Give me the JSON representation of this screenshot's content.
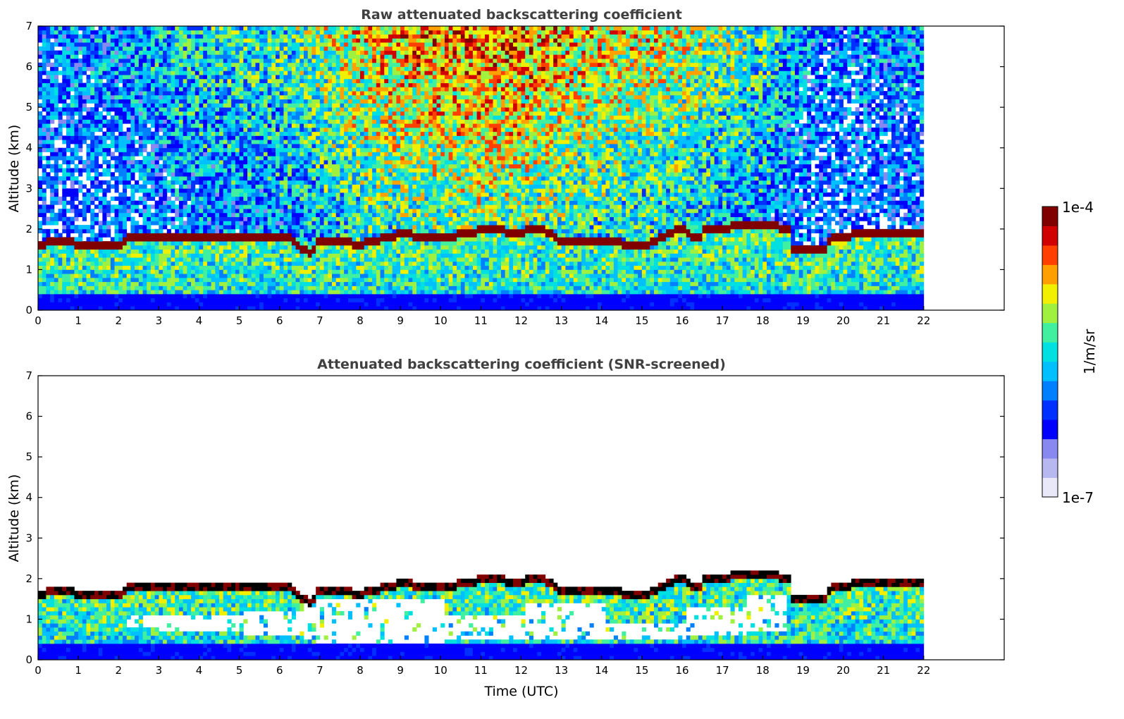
{
  "chart_data": [
    {
      "type": "heatmap",
      "title": "Raw attenuated backscattering coefficient",
      "xlabel": "",
      "ylabel": "Altitude (km)",
      "xlim": [
        0,
        24
      ],
      "ylim": [
        0,
        7
      ],
      "data_xmax": 22,
      "x_ticks": [
        "0",
        "1",
        "2",
        "3",
        "4",
        "5",
        "6",
        "7",
        "8",
        "9",
        "10",
        "11",
        "12",
        "13",
        "14",
        "15",
        "16",
        "17",
        "18",
        "19",
        "20",
        "21",
        "22"
      ],
      "y_ticks": [
        "0",
        "1",
        "2",
        "3",
        "4",
        "5",
        "6",
        "7"
      ],
      "cloud_base_km": [
        [
          0,
          1.65
        ],
        [
          0.7,
          1.74
        ],
        [
          1.0,
          1.62
        ],
        [
          2.0,
          1.6
        ],
        [
          2.2,
          1.8
        ],
        [
          3.0,
          1.85
        ],
        [
          4.0,
          1.82
        ],
        [
          5.0,
          1.82
        ],
        [
          6.3,
          1.78
        ],
        [
          6.5,
          1.5
        ],
        [
          6.8,
          1.45
        ],
        [
          7.0,
          1.75
        ],
        [
          8.0,
          1.65
        ],
        [
          9.0,
          1.9
        ],
        [
          10.0,
          1.8
        ],
        [
          11.0,
          2.0
        ],
        [
          12.0,
          1.95
        ],
        [
          12.5,
          2.05
        ],
        [
          13.0,
          1.7
        ],
        [
          14.0,
          1.75
        ],
        [
          15.0,
          1.6
        ],
        [
          16.0,
          2.05
        ],
        [
          16.4,
          1.75
        ],
        [
          16.6,
          2.05
        ],
        [
          18.0,
          2.1
        ],
        [
          18.7,
          2.05
        ],
        [
          18.75,
          1.55
        ],
        [
          19.6,
          1.5
        ],
        [
          19.7,
          1.85
        ],
        [
          21.0,
          1.9
        ],
        [
          21.9,
          1.95
        ]
      ],
      "noise_level": [
        [
          0,
          0.35
        ],
        [
          2,
          0.4
        ],
        [
          4,
          0.5
        ],
        [
          6,
          0.55
        ],
        [
          8,
          0.75
        ],
        [
          10,
          0.85
        ],
        [
          12,
          0.85
        ],
        [
          14,
          0.75
        ],
        [
          16,
          0.7
        ],
        [
          18,
          0.55
        ],
        [
          19.5,
          0.35
        ],
        [
          22,
          0.4
        ]
      ]
    },
    {
      "type": "heatmap",
      "title": "Attenuated backscattering coefficient (SNR-screened)",
      "xlabel": "Time (UTC)",
      "ylabel": "Altitude (km)",
      "xlim": [
        0,
        24
      ],
      "ylim": [
        0,
        7
      ],
      "data_xmax": 22,
      "x_ticks": [
        "0",
        "1",
        "2",
        "3",
        "4",
        "5",
        "6",
        "7",
        "8",
        "9",
        "10",
        "11",
        "12",
        "13",
        "14",
        "15",
        "16",
        "17",
        "18",
        "19",
        "20",
        "21",
        "22"
      ],
      "y_ticks": [
        "0",
        "1",
        "2",
        "3",
        "4",
        "5",
        "6",
        "7"
      ],
      "screened_gap_km": [
        [
          2.2,
          [
            0.75,
            1.1
          ]
        ],
        [
          3.0,
          [
            0.7,
            1.15
          ]
        ],
        [
          5.0,
          [
            0.55,
            1.2
          ]
        ],
        [
          6.5,
          [
            0.4,
            1.5
          ]
        ],
        [
          8.0,
          [
            0.4,
            1.5
          ]
        ],
        [
          10.0,
          [
            0.45,
            1.1
          ]
        ],
        [
          12.0,
          [
            0.45,
            1.4
          ]
        ],
        [
          14.0,
          [
            0.5,
            0.9
          ]
        ],
        [
          16.0,
          [
            0.55,
            1.3
          ]
        ],
        [
          17.5,
          [
            0.7,
            1.6
          ]
        ],
        [
          18.5,
          [
            0.0,
            0.0
          ]
        ]
      ]
    }
  ],
  "colorbar": {
    "label": "1/m/sr",
    "max_label": "1e-4",
    "min_label": "1e-7",
    "vmin_exp": -7,
    "vmax_exp": -4,
    "colors": [
      "#e8e8f8",
      "#b8b8f0",
      "#8888f0",
      "#0000ff",
      "#0030ff",
      "#0080ff",
      "#00c0ff",
      "#00e0e0",
      "#40f0a0",
      "#a0f040",
      "#f0f000",
      "#ffa000",
      "#ff4000",
      "#d00000",
      "#800000"
    ]
  }
}
